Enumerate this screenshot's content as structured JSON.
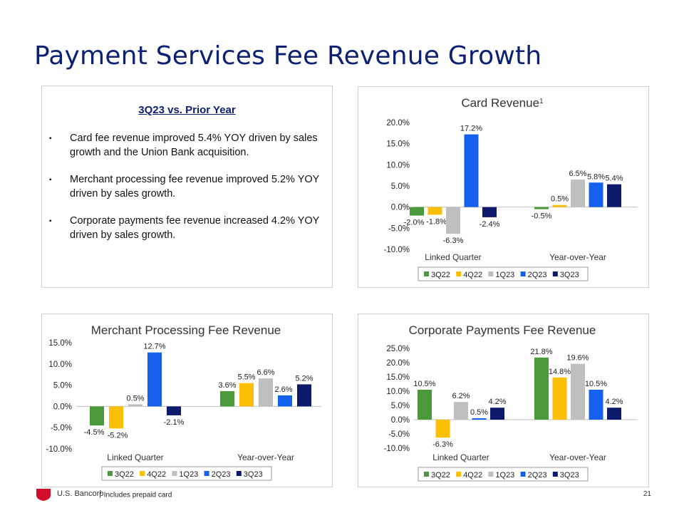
{
  "page": {
    "title": "Payment Services Fee Revenue Growth",
    "number": "21"
  },
  "summary": {
    "heading": "3Q23 vs. Prior Year",
    "bullet_glyph": "▪",
    "bullets": [
      "Card fee revenue improved 5.4% YOY driven by sales growth and the Union Bank acquisition.",
      "Merchant processing fee revenue improved 5.2% YOY driven by sales growth.",
      "Corporate payments fee revenue increased 4.2% YOY driven by sales growth."
    ]
  },
  "footer": {
    "brand": "U.S. Bancorp",
    "note_sup": "1",
    "note": "Includes prepaid card"
  },
  "colors": {
    "title": "#0c2074",
    "series": [
      "#4a9a3c",
      "#fbbf05",
      "#bfbfbf",
      "#1660ee",
      "#0d1a6b"
    ],
    "logo": "#d0102a"
  },
  "chart_data": [
    {
      "id": "card",
      "type": "bar",
      "title": "Card Revenue",
      "title_sup": "1",
      "categories": [
        "Linked Quarter",
        "Year-over-Year"
      ],
      "ylim": [
        -10,
        20
      ],
      "yticks": [
        -10,
        -5,
        0,
        5,
        10,
        15,
        20
      ],
      "tick_labels": [
        "-10.0%",
        "-5.0%",
        "0.0%",
        "5.0%",
        "10.0%",
        "15.0%",
        "20.0%"
      ],
      "legend": "bottom",
      "series": [
        {
          "name": "3Q22",
          "values": [
            -2.0,
            -0.5
          ],
          "labels": [
            "-2.0%",
            "-0.5%"
          ]
        },
        {
          "name": "4Q22",
          "values": [
            -1.8,
            0.5
          ],
          "labels": [
            "-1.8%",
            "0.5%"
          ]
        },
        {
          "name": "1Q23",
          "values": [
            -6.3,
            6.5
          ],
          "labels": [
            "-6.3%",
            "6.5%"
          ]
        },
        {
          "name": "2Q23",
          "values": [
            17.2,
            5.8
          ],
          "labels": [
            "17.2%",
            "5.8%"
          ]
        },
        {
          "name": "3Q23",
          "values": [
            -2.4,
            5.4
          ],
          "labels": [
            "-2.4%",
            "5.4%"
          ]
        }
      ]
    },
    {
      "id": "merchant",
      "type": "bar",
      "title": "Merchant Processing Fee Revenue",
      "title_sup": "",
      "categories": [
        "Linked Quarter",
        "Year-over-Year"
      ],
      "ylim": [
        -10,
        15
      ],
      "yticks": [
        -10,
        -5,
        0,
        5,
        10,
        15
      ],
      "tick_labels": [
        "-10.0%",
        "-5.0%",
        "0.0%",
        "5.0%",
        "10.0%",
        "15.0%"
      ],
      "legend": "bottom",
      "series": [
        {
          "name": "3Q22",
          "values": [
            -4.5,
            3.6
          ],
          "labels": [
            "-4.5%",
            "3.6%"
          ]
        },
        {
          "name": "4Q22",
          "values": [
            -5.2,
            5.5
          ],
          "labels": [
            "-5.2%",
            "5.5%"
          ]
        },
        {
          "name": "1Q23",
          "values": [
            0.5,
            6.6
          ],
          "labels": [
            "0.5%",
            "6.6%"
          ]
        },
        {
          "name": "2Q23",
          "values": [
            12.7,
            2.6
          ],
          "labels": [
            "12.7%",
            "2.6%"
          ]
        },
        {
          "name": "3Q23",
          "values": [
            -2.1,
            5.2
          ],
          "labels": [
            "-2.1%",
            "5.2%"
          ]
        }
      ]
    },
    {
      "id": "corporate",
      "type": "bar",
      "title": "Corporate Payments Fee Revenue",
      "title_sup": "",
      "categories": [
        "Linked Quarter",
        "Year-over-Year"
      ],
      "ylim": [
        -10,
        25
      ],
      "yticks": [
        -10,
        -5,
        0,
        5,
        10,
        15,
        20,
        25
      ],
      "tick_labels": [
        "-10.0%",
        "-5.0%",
        "0.0%",
        "5.0%",
        "10.0%",
        "15.0%",
        "20.0%",
        "25.0%"
      ],
      "legend": "bottom",
      "series": [
        {
          "name": "3Q22",
          "values": [
            10.5,
            21.8
          ],
          "labels": [
            "10.5%",
            "21.8%"
          ]
        },
        {
          "name": "4Q22",
          "values": [
            -6.3,
            14.8
          ],
          "labels": [
            "-6.3%",
            "14.8%"
          ]
        },
        {
          "name": "1Q23",
          "values": [
            6.2,
            19.6
          ],
          "labels": [
            "6.2%",
            "19.6%"
          ]
        },
        {
          "name": "2Q23",
          "values": [
            0.5,
            10.5
          ],
          "labels": [
            "0.5%",
            "10.5%"
          ]
        },
        {
          "name": "3Q23",
          "values": [
            4.2,
            4.2
          ],
          "labels": [
            "4.2%",
            "4.2%"
          ]
        }
      ]
    }
  ]
}
